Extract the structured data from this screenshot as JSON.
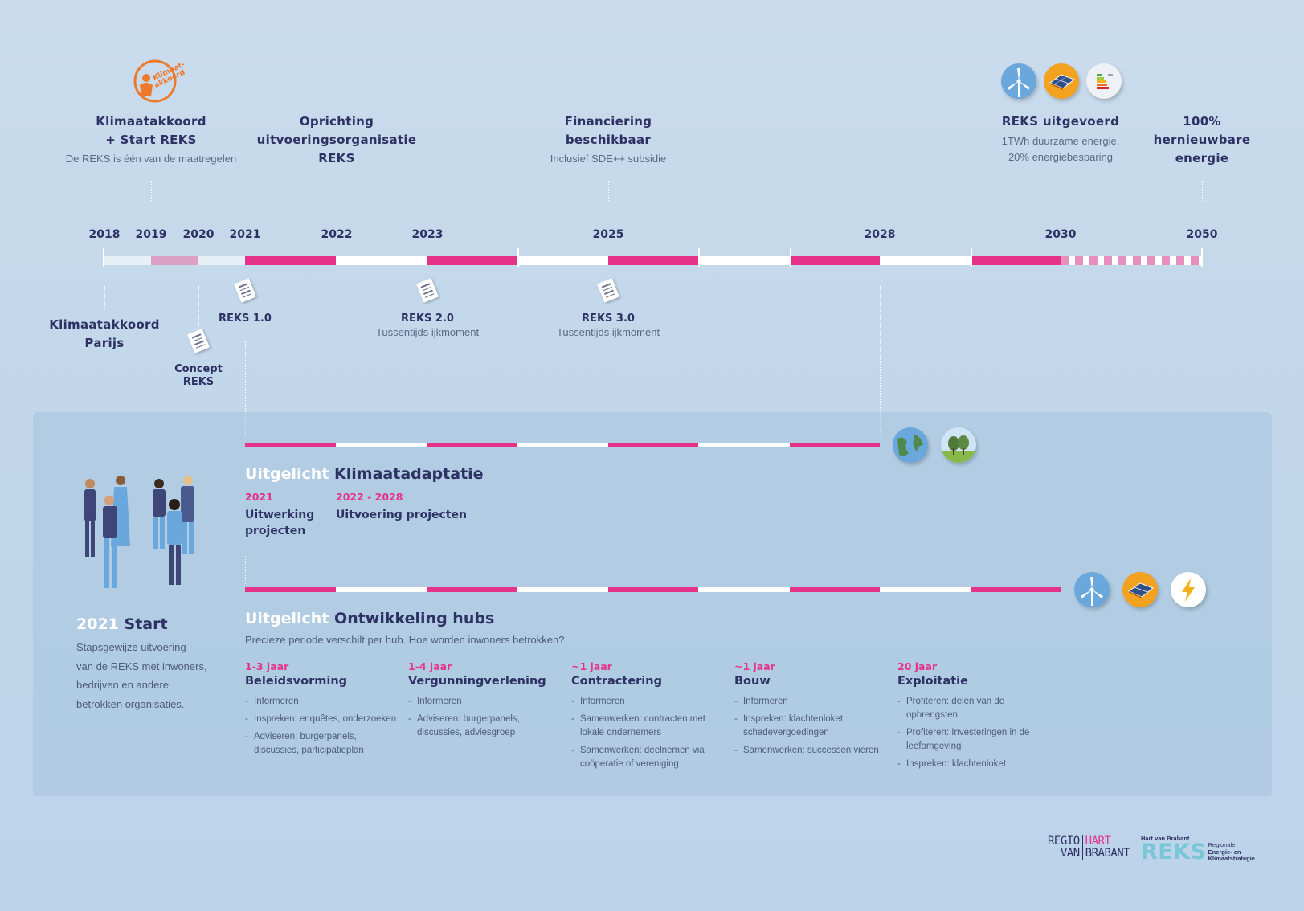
{
  "top_milestones": [
    {
      "title_lines": [
        "Klimaatakkoord",
        "+ Start REKS"
      ],
      "subtitle": "De REKS is één van de maatregelen"
    },
    {
      "title_lines": [
        "Oprichting",
        "uitvoeringsorganisatie",
        "REKS"
      ],
      "subtitle": ""
    },
    {
      "title_lines": [
        "Financiering",
        "beschikbaar"
      ],
      "subtitle": "Inclusief SDE++ subsidie"
    },
    {
      "title_lines": [
        "REKS uitgevoerd"
      ],
      "subtitle_lines": [
        "1TWh duurzame energie,",
        "20% energiebesparing"
      ]
    },
    {
      "title_lines": [
        "100%",
        "hernieuwbare",
        "energie"
      ]
    }
  ],
  "klimaat_badge_text": "Klimaat-akkoord",
  "years": [
    "2018",
    "2019",
    "2020",
    "2021",
    "2022",
    "2023",
    "2025",
    "2028",
    "2030",
    "2050"
  ],
  "bottom_milestones": [
    {
      "title_lines": [
        "Klimaatakkoord",
        "Parijs"
      ]
    },
    {
      "title": "REKS 1.0"
    },
    {
      "title_lines": [
        "Concept",
        "REKS"
      ]
    },
    {
      "title": "REKS 2.0",
      "subtitle": "Tussentijds ijkmoment"
    },
    {
      "title": "REKS 3.0",
      "subtitle": "Tussentijds ijkmoment"
    }
  ],
  "start_block": {
    "year": "2021",
    "title": "Start",
    "text_lines": [
      "Stapsgewijze uitvoering",
      "van de REKS met inwoners,",
      "bedrijven en andere",
      "betrokken organisaties."
    ]
  },
  "adaptatie": {
    "prefix": "Uitgelicht",
    "title": "Klimaatadaptatie",
    "phases": [
      {
        "period": "2021",
        "name_lines": [
          "Uitwerking",
          "projecten"
        ]
      },
      {
        "period": "2022 - 2028",
        "name_lines": [
          "Uitvoering projecten"
        ]
      }
    ]
  },
  "hubs": {
    "prefix": "Uitgelicht",
    "title": "Ontwikkeling hubs",
    "intro": "Precieze periode verschilt per hub. Hoe worden inwoners betrokken?",
    "phases": [
      {
        "duration": "1-3 jaar",
        "name": "Beleidsvorming",
        "items": [
          "Informeren",
          "Inspreken: enquêtes, onderzoeken",
          "Adviseren: burgerpanels, discussies, participatieplan"
        ]
      },
      {
        "duration": "1-4 jaar",
        "name": "Vergunningverlening",
        "items": [
          "Informeren",
          "Adviseren: burgerpanels, discussies, adviesgroep"
        ]
      },
      {
        "duration": "~1 jaar",
        "name": "Contractering",
        "items": [
          "Informeren",
          "Samenwerken: contracten met lokale ondernemers",
          "Samenwerken: deelnemen via coöperatie of vereniging"
        ]
      },
      {
        "duration": "~1 jaar",
        "name": "Bouw",
        "items": [
          "Informeren",
          "Inspreken: klachtenloket, schadevergoedingen",
          "Samenwerken: successen vieren"
        ]
      },
      {
        "duration": "20 jaar",
        "name": "Exploitatie",
        "items": [
          "Profiteren: delen van de opbrengsten",
          "Profiteren: Investeringen in de leefomgeving",
          "Inspreken: klachtenloket"
        ]
      }
    ]
  },
  "logos": {
    "regio_lines": [
      "REGIO",
      "VAN"
    ],
    "hart_lines": [
      "HART",
      "BRABANT"
    ],
    "reks_small": "Hart van Brabant",
    "reks_big": "REKS",
    "reks_desc_lines": [
      "Regionale",
      "Energie- en",
      "Klimaatstrategie"
    ]
  },
  "colors": {
    "accent_pink": "#e5338a",
    "navy": "#2e3163",
    "background": "#c4d8eb"
  },
  "icons": [
    "klimaatakkoord-badge-icon",
    "wind-turbine-icon",
    "solar-panel-icon",
    "energy-label-icon",
    "earth-icon",
    "trees-icon",
    "lightning-icon",
    "document-icon",
    "people-illustration"
  ]
}
